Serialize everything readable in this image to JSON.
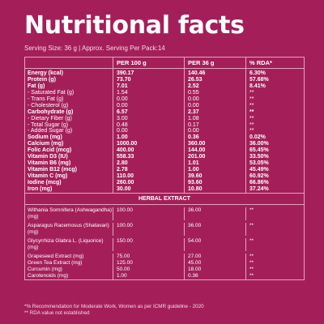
{
  "title": "Nutritional facts",
  "serving": "Serving Size: 36 g  |  Approx. Serving Per Pack:14",
  "headers": [
    "",
    "PER 100 g",
    "PER 36 g",
    "% RDA*"
  ],
  "nutrients": [
    {
      "name": "Energy (kcal)",
      "bold": true,
      "p100": "390.17",
      "p36": "140.46",
      "rda": "6.30%"
    },
    {
      "name": "Protein (g)",
      "bold": true,
      "p100": "73.70",
      "p36": "26.53",
      "rda": "57.68%"
    },
    {
      "name": "Fat (g)",
      "bold": true,
      "p100": "7.01",
      "p36": "2.52",
      "rda": "8.41%"
    },
    {
      "name": "- Saturated Fat (g)",
      "bold": false,
      "p100": "1.54",
      "p36": "0.55",
      "rda": "**"
    },
    {
      "name": "- Trans Fat (g)",
      "bold": false,
      "p100": "0.00",
      "p36": "0.00",
      "rda": "**"
    },
    {
      "name": "- Cholesterol (g)",
      "bold": false,
      "p100": "0.00",
      "p36": "0.00",
      "rda": "**"
    },
    {
      "name": "Carbohydrate (g)",
      "bold": true,
      "p100": "6.57",
      "p36": "2.37",
      "rda": "**"
    },
    {
      "name": "- Dietary Fiber (g)",
      "bold": false,
      "p100": "3.00",
      "p36": "1.08",
      "rda": "**"
    },
    {
      "name": "- Total Sugar (g)",
      "bold": false,
      "p100": "0.48",
      "p36": "0.17",
      "rda": "**"
    },
    {
      "name": "- Added Sugar (g)",
      "bold": false,
      "p100": "0.00",
      "p36": "0.00",
      "rda": "**"
    },
    {
      "name": "Sodium (mg)",
      "bold": true,
      "p100": "1.00",
      "p36": "0.36",
      "rda": "0.02%"
    },
    {
      "name": "Calcium (mg)",
      "bold": true,
      "p100": "1000.00",
      "p36": "360.00",
      "rda": "36.00%"
    },
    {
      "name": "Folic Acid (mcg)",
      "bold": true,
      "p100": "400.00",
      "p36": "144.00",
      "rda": "65.45%"
    },
    {
      "name": "Vitamin D3 (IU)",
      "bold": true,
      "p100": "558.33",
      "p36": "201.00",
      "rda": "33.50%"
    },
    {
      "name": "Vitamin B6 (mg)",
      "bold": true,
      "p100": "2.80",
      "p36": "1.01",
      "rda": "53.05%"
    },
    {
      "name": "Vitamin B12 (mcg)",
      "bold": true,
      "p100": "2.78",
      "p36": "1.00",
      "rda": "45.49%"
    },
    {
      "name": "Vitamin C (mg)",
      "bold": true,
      "p100": "110.00",
      "p36": "39.60",
      "rda": "60.92%"
    },
    {
      "name": "Iodine (mcg)",
      "bold": true,
      "p100": "260.00",
      "p36": "93.60",
      "rda": "66.86%"
    },
    {
      "name": "Iron (mg)",
      "bold": true,
      "p100": "30.00",
      "p36": "10.80",
      "rda": "37.24%"
    }
  ],
  "herbal_title": "HERBAL EXTRACT",
  "herbal": [
    {
      "name": "Withania Somnifera (Ashwagandha)(mg)",
      "p100": "100.00",
      "p36": "36.00",
      "rda": "**"
    },
    {
      "name": "Asparagus Racemosus (Shatavari)(mg)",
      "p100": "100.00",
      "p36": "36.00",
      "rda": "**"
    },
    {
      "name": "Glycyrrhiza Glabra L. (Liquorice)(mg)",
      "p100": "150.00",
      "p36": "54.00",
      "rda": "**"
    },
    {
      "name": "Grapeseed Extract (mg)",
      "p100": "75.00",
      "p36": "27.00",
      "rda": "**"
    },
    {
      "name": "Green Tea Extract (mg)",
      "p100": "125.00",
      "p36": "45.00",
      "rda": "**"
    },
    {
      "name": "Curcumin (mg)",
      "p100": "50.00",
      "p36": "18.00",
      "rda": "**"
    },
    {
      "name": "Carotenoids (mg)",
      "p100": "1.00",
      "p36": "0.36",
      "rda": "**"
    }
  ],
  "footnotes": [
    "*% Recommendation for Moderate Work, Women as per ICMR guideline - 2020",
    "** RDA value not established"
  ]
}
